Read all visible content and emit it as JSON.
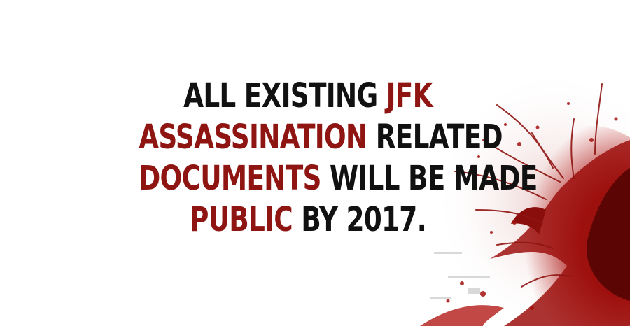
{
  "headline": {
    "lines": [
      [
        {
          "text": "ALL EXISTING ",
          "accent": false
        },
        {
          "text": "JFK",
          "accent": true
        }
      ],
      [
        {
          "text": "ASSASSINATION",
          "accent": true
        },
        {
          "text": " RELATED",
          "accent": false
        }
      ],
      [
        {
          "text": "DOCUMENTS",
          "accent": true
        },
        {
          "text": " WILL BE MADE",
          "accent": false
        }
      ],
      [
        {
          "text": "PUBLIC",
          "accent": true
        },
        {
          "text": " BY 2017.",
          "accent": false
        }
      ]
    ]
  },
  "colors": {
    "background": "#ffffff",
    "text": "#111111",
    "accent": "#8f1512",
    "splatter": "#a3120f"
  },
  "decoration": {
    "splatter_icon": "blood-splatter-graphic"
  }
}
